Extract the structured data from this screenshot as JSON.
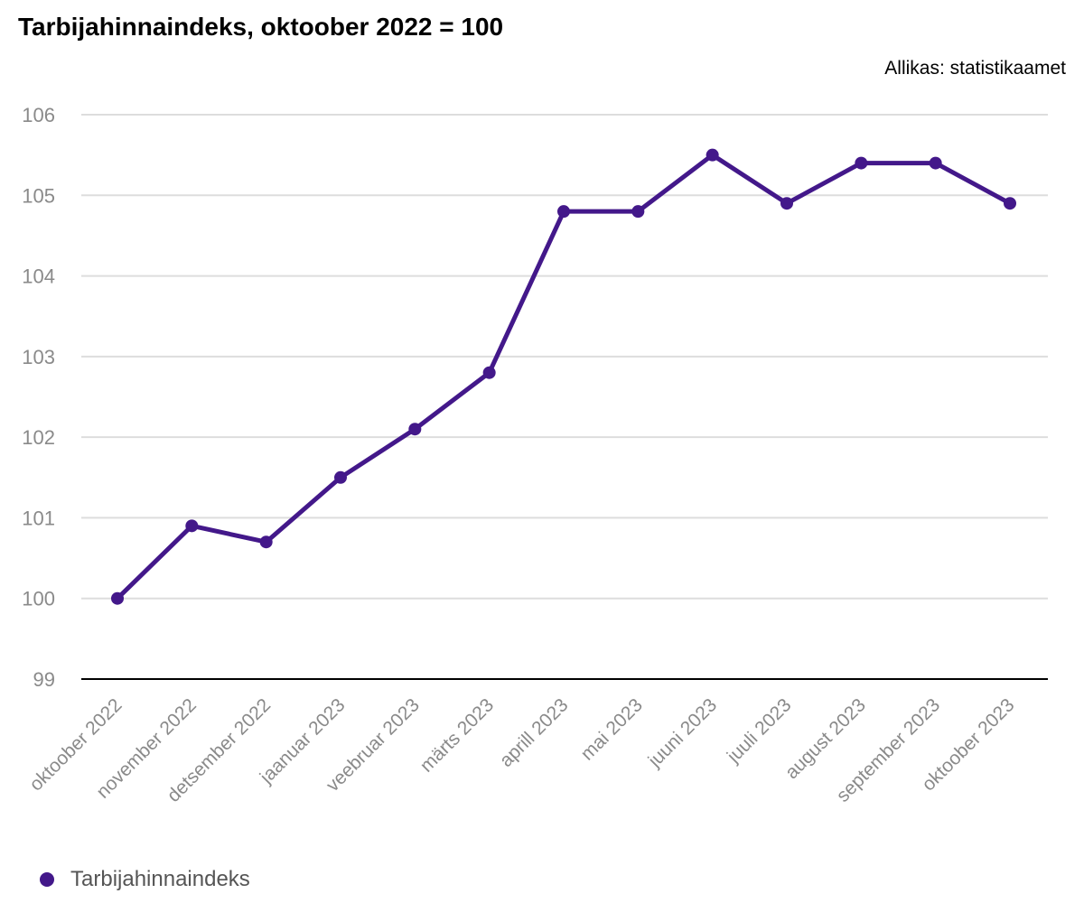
{
  "title": "Tarbijahinnaindeks, oktoober 2022 = 100",
  "source": "Allikas: statistikaamet",
  "colors": {
    "series": "#43188A",
    "grid": "#DDDDDD",
    "axis": "#000000",
    "tick_label": "#8A8A8A"
  },
  "chart_data": {
    "type": "line",
    "title": "Tarbijahinnaindeks, oktoober 2022 = 100",
    "xlabel": "",
    "ylabel": "",
    "ylim": [
      99,
      106
    ],
    "yticks": [
      "99",
      "100",
      "101",
      "102",
      "103",
      "104",
      "105",
      "106"
    ],
    "grid": true,
    "legend_position": "bottom-left",
    "categories": [
      "oktoober 2022",
      "november 2022",
      "detsember 2022",
      "jaanuar 2023",
      "veebruar 2023",
      "märts 2023",
      "aprill 2023",
      "mai 2023",
      "juuni 2023",
      "juuli 2023",
      "august 2023",
      "september 2023",
      "oktoober 2023"
    ],
    "series": [
      {
        "name": "Tarbijahinnaindeks",
        "values": [
          100.0,
          100.9,
          100.7,
          101.5,
          102.1,
          102.8,
          104.8,
          104.8,
          105.5,
          104.9,
          105.4,
          105.4,
          104.9
        ]
      }
    ]
  }
}
